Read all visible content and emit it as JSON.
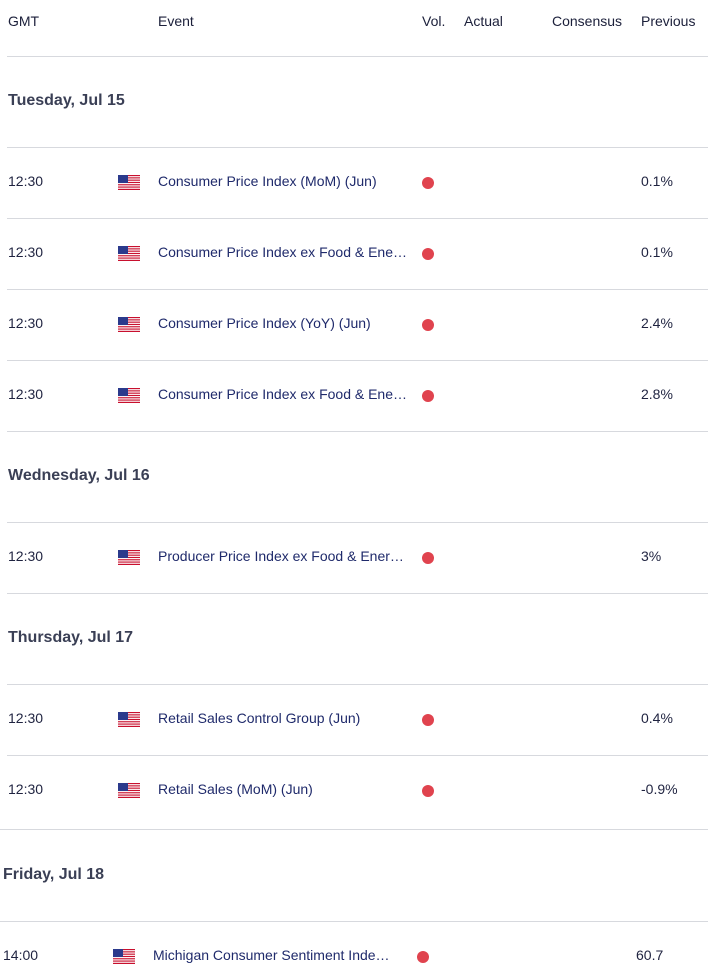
{
  "header": {
    "gmt": "GMT",
    "event": "Event",
    "vol": "Vol.",
    "actual": "Actual",
    "consensus": "Consensus",
    "previous": "Previous"
  },
  "days": [
    {
      "label": "Tuesday, Jul 15",
      "events": [
        {
          "time": "12:30",
          "country": "us-flag-icon",
          "event": "Consumer Price Index (MoM) (Jun)",
          "volatility": "high",
          "actual": "",
          "consensus": "",
          "previous": "0.1%"
        },
        {
          "time": "12:30",
          "country": "us-flag-icon",
          "event": "Consumer Price Index ex Food & Ene…",
          "volatility": "high",
          "actual": "",
          "consensus": "",
          "previous": "0.1%"
        },
        {
          "time": "12:30",
          "country": "us-flag-icon",
          "event": "Consumer Price Index (YoY) (Jun)",
          "volatility": "high",
          "actual": "",
          "consensus": "",
          "previous": "2.4%"
        },
        {
          "time": "12:30",
          "country": "us-flag-icon",
          "event": "Consumer Price Index ex Food & Ene…",
          "volatility": "high",
          "actual": "",
          "consensus": "",
          "previous": "2.8%"
        }
      ]
    },
    {
      "label": "Wednesday, Jul 16",
      "events": [
        {
          "time": "12:30",
          "country": "us-flag-icon",
          "event": "Producer Price Index ex Food & Ener…",
          "volatility": "high",
          "actual": "",
          "consensus": "",
          "previous": "3%"
        }
      ]
    },
    {
      "label": "Thursday, Jul 17",
      "events": [
        {
          "time": "12:30",
          "country": "us-flag-icon",
          "event": "Retail Sales Control Group (Jun)",
          "volatility": "high",
          "actual": "",
          "consensus": "",
          "previous": "0.4%"
        },
        {
          "time": "12:30",
          "country": "us-flag-icon",
          "event": "Retail Sales (MoM) (Jun)",
          "volatility": "high",
          "actual": "",
          "consensus": "",
          "previous": "-0.9%"
        }
      ]
    },
    {
      "label": "Friday, Jul 18",
      "events": [
        {
          "time": "14:00",
          "country": "us-flag-icon",
          "event": "Michigan Consumer Sentiment Inde…",
          "volatility": "high",
          "actual": "",
          "consensus": "",
          "previous": "60.7"
        }
      ]
    }
  ],
  "colors": {
    "high_volatility": "#e0434e",
    "event_text": "#1f2a6b",
    "divider": "#d7d9de"
  }
}
